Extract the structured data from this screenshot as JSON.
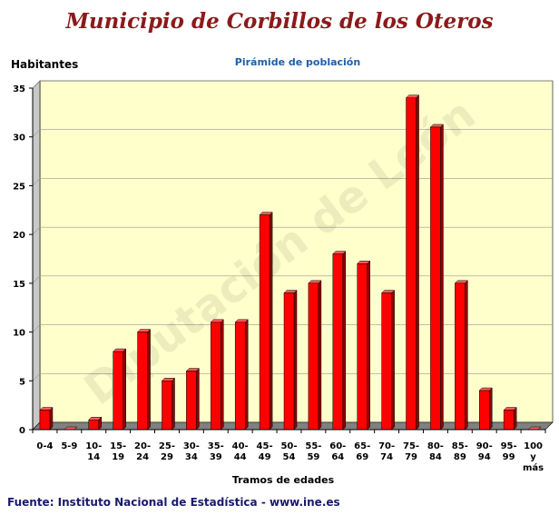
{
  "page": {
    "title": "Municipio de Corbillos de los Oteros",
    "source": "Fuente: Instituto Nacional de Estadística - www.ine.es",
    "watermark": "Diputación de León"
  },
  "chart_data": {
    "type": "bar",
    "title": "Pirámide de población",
    "ylabel": "Habitantes",
    "xlabel": "Tramos de edades",
    "ylim": [
      0,
      35
    ],
    "yticks": [
      0,
      5,
      10,
      15,
      20,
      25,
      30,
      35
    ],
    "grid": true,
    "legend": "none",
    "categories": [
      [
        "0-4"
      ],
      [
        "5-9"
      ],
      [
        "10-",
        "14"
      ],
      [
        "15-",
        "19"
      ],
      [
        "20-",
        "24"
      ],
      [
        "25-",
        "29"
      ],
      [
        "30-",
        "34"
      ],
      [
        "35-",
        "39"
      ],
      [
        "40-",
        "44"
      ],
      [
        "45-",
        "49"
      ],
      [
        "50-",
        "54"
      ],
      [
        "55-",
        "59"
      ],
      [
        "60-",
        "64"
      ],
      [
        "65-",
        "69"
      ],
      [
        "70-",
        "74"
      ],
      [
        "75-",
        "79"
      ],
      [
        "80-",
        "84"
      ],
      [
        "85-",
        "89"
      ],
      [
        "90-",
        "94"
      ],
      [
        "95-",
        "99"
      ],
      [
        "100",
        "y",
        "más"
      ]
    ],
    "values": [
      2,
      0,
      1,
      8,
      10,
      5,
      6,
      11,
      11,
      22,
      14,
      15,
      18,
      17,
      14,
      34,
      31,
      15,
      4,
      2,
      0
    ],
    "colors": {
      "bar_front": "#ff0000",
      "bar_side": "#8b0000",
      "bar_top": "#ff5a5a",
      "plot_background": "#ffffcc",
      "plot_wall_side": "#c8c8c8",
      "floor": "#808080",
      "gridline": "#999999"
    }
  }
}
